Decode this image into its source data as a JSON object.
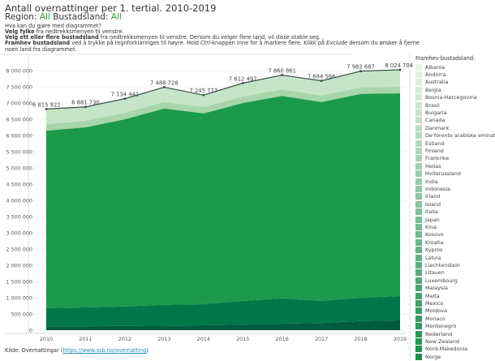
{
  "header": {
    "title": "Antall overnattinger per 1. tertial. 2010-2019",
    "region_label": "Region:",
    "region_value": "All",
    "country_label": "Bustadsland:",
    "country_value": "All",
    "help_heading": "Hva kan du gjøre med diagrammet?",
    "line1_bold": "Velg fylke",
    "line1_rest": " fra nedtrekksmenyen til venstre.",
    "line2_bold": "Velg ett eller flere bustadsland",
    "line2_rest": " fra nedtrekksmenyen til venstre. Dersom du velger flere land, vil disse stable seg.",
    "line3_bold": "Framhev bustadsland",
    "line3_a": " ved å trykke på tegnforklaringen til høyre. Hold ",
    "line3_ctrl": "Ctrl",
    "line3_b": "-knappen inne for å markere flere. Klikk på ",
    "line3_exclude": "Exclude",
    "line3_c": " dersom du ønsker å fjerne",
    "line4": "noen land fra diagrammet."
  },
  "colors": {
    "accent_green": "#2ca02c",
    "total_line": "#3a4a48",
    "legend_light": "#e6f3e6",
    "legend_dark": "#1a9048"
  },
  "chart_data": {
    "type": "area",
    "stacked": true,
    "x": [
      2010,
      2011,
      2012,
      2013,
      2014,
      2015,
      2016,
      2017,
      2018,
      2019
    ],
    "ylim": [
      0,
      8000000
    ],
    "yticks": [
      0,
      500000,
      1000000,
      1500000,
      2000000,
      2500000,
      3000000,
      3500000,
      4000000,
      4500000,
      5000000,
      5500000,
      6000000,
      6500000,
      7000000,
      7500000,
      8000000
    ],
    "ytick_labels": [
      "0",
      "500 000",
      "1 000 000",
      "1 500 000",
      "2 000 000",
      "2 500 000",
      "3 000 000",
      "3 500 000",
      "4 000 000",
      "4 500 000",
      "5 000 000",
      "5 500 000",
      "6 000 000",
      "6 500 000",
      "7 000 000",
      "7 500 000",
      "8 000 000"
    ],
    "grid": true,
    "totals": [
      6815922,
      6881730,
      7134441,
      7488728,
      7245777,
      7612497,
      7860861,
      7684566,
      7982687,
      8024704
    ],
    "total_labels": [
      "6 815 922",
      "6 881 730",
      "7 134 441",
      "7 488 728",
      "7 245 777",
      "7 612 497",
      "7 860 861",
      "7 684 566",
      "7 982 687",
      "8 024 704"
    ],
    "series": [
      {
        "color": "#005c3f",
        "values": [
          120000,
          120000,
          130000,
          140000,
          150000,
          170000,
          200000,
          220000,
          280000,
          300000
        ]
      },
      {
        "color": "#00774a",
        "values": [
          560000,
          580000,
          600000,
          640000,
          650000,
          730000,
          780000,
          680000,
          720000,
          750000
        ]
      },
      {
        "color": "#1b9a4b",
        "values": [
          5470000,
          5550000,
          5770000,
          6050000,
          5880000,
          6100000,
          6240000,
          6130000,
          6280000,
          6250000
        ]
      },
      {
        "color": "#a6d6a9",
        "values": [
          200000,
          200000,
          200000,
          200000,
          200000,
          200000,
          200000,
          200000,
          200000,
          200000
        ]
      },
      {
        "color": "#c6e4c7",
        "values": [
          465922,
          431730,
          434441,
          458728,
          365777,
          412497,
          440861,
          454566,
          502687,
          524704
        ]
      }
    ],
    "legend": {
      "title": "Framhev bustadsland:",
      "placement": "right",
      "items": [
        "Albania",
        "Andorra",
        "Australia",
        "Belgia",
        "Bosnia-Hercegovina",
        "Brasil",
        "Bulgaria",
        "Canada",
        "Danmark",
        "De forente arabiske emirater",
        "Estland",
        "Finland",
        "Frankrike",
        "Hellas",
        "Hviterussland",
        "India",
        "Indonesia",
        "Irland",
        "Island",
        "Italia",
        "Japan",
        "Kina",
        "Kosovo",
        "Kroatia",
        "Kypros",
        "Latvia",
        "Liechtenstein",
        "Litauen",
        "Luxembourg",
        "Malaysia",
        "Malta",
        "Mexico",
        "Moldova",
        "Monaco",
        "Montenegro",
        "Nederland",
        "New Zealand",
        "Nord-Makedonia",
        "Norge"
      ]
    }
  },
  "source": {
    "label": "Kilde: Overnattingar (",
    "link": "https://www.ssb.no/overnatting",
    "close": ")"
  }
}
